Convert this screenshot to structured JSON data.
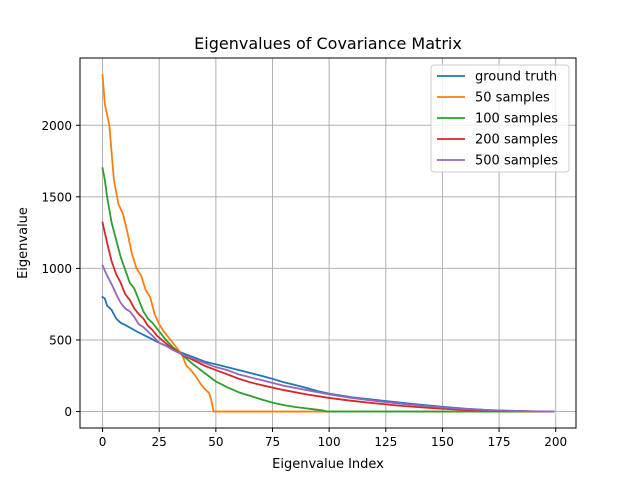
{
  "chart_data": {
    "type": "line",
    "title": "Eigenvalues of Covariance Matrix",
    "xlabel": "Eigenvalue Index",
    "ylabel": "Eigenvalue",
    "xlim": [
      -9.95,
      208.95
    ],
    "ylim": [
      -115,
      2470
    ],
    "xticks": [
      0,
      25,
      50,
      75,
      100,
      125,
      150,
      175,
      200
    ],
    "yticks": [
      0,
      500,
      1000,
      1500,
      2000
    ],
    "grid": true,
    "legend_position": "top-right",
    "series": [
      {
        "name": "ground truth",
        "color": "#1f77b4",
        "x": [
          0,
          1,
          2,
          4,
          6,
          8,
          10,
          15,
          20,
          25,
          30,
          35,
          40,
          45,
          50,
          55,
          60,
          65,
          70,
          75,
          80,
          85,
          90,
          95,
          100,
          110,
          120,
          130,
          140,
          150,
          160,
          170,
          180,
          190,
          199
        ],
        "y": [
          800,
          790,
          740,
          710,
          650,
          620,
          605,
          560,
          520,
          480,
          445,
          410,
          380,
          350,
          330,
          310,
          290,
          270,
          250,
          228,
          205,
          185,
          165,
          143,
          125,
          100,
          82,
          65,
          48,
          33,
          20,
          11,
          5,
          1,
          0
        ]
      },
      {
        "name": "50 samples",
        "color": "#ff7f0e",
        "x": [
          0,
          1,
          3,
          5,
          7,
          9,
          11,
          13,
          15,
          17,
          19,
          21,
          23,
          25,
          27,
          29,
          31,
          33,
          35,
          37,
          39,
          41,
          43,
          45,
          47,
          48,
          49,
          50,
          199
        ],
        "y": [
          2350,
          2150,
          2000,
          1620,
          1450,
          1380,
          1250,
          1100,
          1000,
          950,
          850,
          800,
          680,
          610,
          560,
          520,
          480,
          440,
          400,
          320,
          290,
          250,
          200,
          160,
          130,
          80,
          0,
          0,
          0
        ]
      },
      {
        "name": "100 samples",
        "color": "#2ca02c",
        "x": [
          0,
          1,
          2,
          4,
          6,
          8,
          10,
          12,
          14,
          16,
          18,
          20,
          22,
          25,
          28,
          31,
          34,
          37,
          40,
          45,
          50,
          55,
          60,
          65,
          70,
          75,
          80,
          85,
          90,
          95,
          98,
          99,
          199
        ],
        "y": [
          1700,
          1620,
          1500,
          1320,
          1200,
          1080,
          990,
          900,
          860,
          780,
          700,
          650,
          620,
          560,
          500,
          450,
          410,
          370,
          330,
          270,
          210,
          170,
          135,
          110,
          85,
          62,
          45,
          32,
          22,
          12,
          5,
          0,
          0
        ]
      },
      {
        "name": "200 samples",
        "color": "#d62728",
        "x": [
          0,
          2,
          4,
          6,
          8,
          10,
          12,
          14,
          16,
          18,
          20,
          22,
          24,
          27,
          30,
          35,
          40,
          45,
          50,
          55,
          60,
          65,
          70,
          80,
          90,
          100,
          110,
          120,
          130,
          140,
          150,
          160,
          170,
          180,
          190,
          199
        ],
        "y": [
          1320,
          1180,
          1050,
          960,
          900,
          820,
          780,
          720,
          680,
          650,
          600,
          570,
          530,
          490,
          450,
          400,
          360,
          320,
          290,
          260,
          230,
          205,
          185,
          150,
          120,
          95,
          75,
          58,
          42,
          30,
          20,
          12,
          6,
          3,
          1,
          0
        ]
      },
      {
        "name": "500 samples",
        "color": "#9467bd",
        "x": [
          0,
          2,
          4,
          6,
          8,
          10,
          12,
          14,
          16,
          18,
          20,
          22,
          25,
          28,
          31,
          35,
          40,
          45,
          50,
          55,
          60,
          65,
          70,
          80,
          90,
          100,
          110,
          120,
          130,
          140,
          150,
          160,
          170,
          180,
          190,
          199
        ],
        "y": [
          1020,
          950,
          890,
          820,
          760,
          720,
          700,
          660,
          610,
          590,
          560,
          530,
          480,
          460,
          430,
          400,
          370,
          340,
          310,
          290,
          260,
          240,
          220,
          180,
          150,
          120,
          95,
          75,
          57,
          42,
          28,
          18,
          10,
          5,
          2,
          0
        ]
      }
    ]
  }
}
